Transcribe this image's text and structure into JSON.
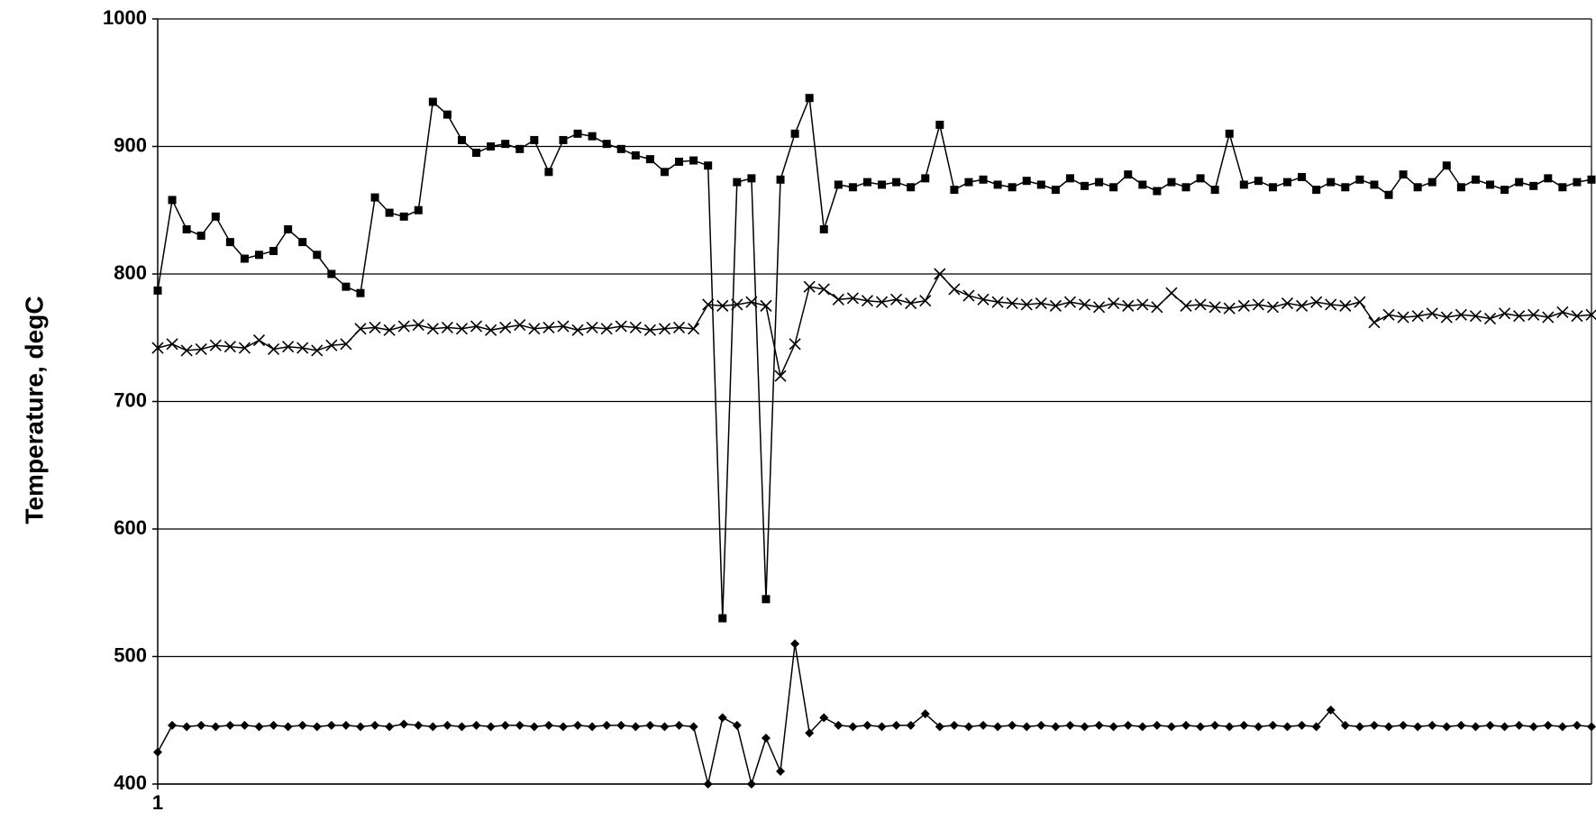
{
  "chart_data": {
    "type": "line",
    "y_label": "Temperature, degC",
    "categories": [
      "1",
      null,
      null,
      null,
      null,
      null,
      null,
      null,
      null,
      null,
      null,
      null,
      null,
      null,
      null,
      null,
      null,
      null,
      null,
      null,
      null,
      null,
      null,
      null,
      null,
      null,
      null,
      null,
      null,
      null,
      null,
      null,
      null,
      null,
      null,
      null,
      null,
      null,
      null,
      null,
      null,
      null,
      null,
      null,
      null,
      null,
      null,
      null,
      null,
      null,
      null,
      null,
      null,
      null,
      null,
      null,
      null,
      null,
      null,
      null,
      null,
      null,
      null,
      null,
      null,
      null,
      null,
      null,
      null,
      null,
      null,
      null,
      null,
      null,
      null,
      null,
      null,
      null,
      null,
      null,
      null,
      null,
      null,
      null,
      null,
      null,
      null,
      null,
      null,
      null,
      null,
      null,
      null,
      null,
      null,
      null,
      null,
      null,
      null,
      null
    ],
    "series": [
      {
        "color": "#000000",
        "marker": "square",
        "values": [
          787,
          858,
          835,
          830,
          845,
          825,
          812,
          815,
          818,
          835,
          825,
          815,
          800,
          790,
          785,
          860,
          848,
          845,
          850,
          935,
          925,
          905,
          895,
          900,
          902,
          898,
          905,
          880,
          905,
          910,
          908,
          902,
          898,
          893,
          890,
          880,
          888,
          889,
          885,
          530,
          872,
          875,
          545,
          874,
          910,
          938,
          835,
          870,
          868,
          872,
          870,
          872,
          868,
          875,
          917,
          866,
          872,
          874,
          870,
          868,
          873,
          870,
          866,
          875,
          869,
          872,
          868,
          878,
          870,
          865,
          872,
          868,
          875,
          866,
          910,
          870,
          873,
          868,
          872,
          876,
          866,
          872,
          868,
          874,
          870,
          862,
          878,
          868,
          872,
          885,
          868,
          874,
          870,
          866,
          872,
          869,
          875,
          868,
          872,
          874
        ]
      },
      {
        "color": "#000000",
        "marker": "x",
        "values": [
          742,
          745,
          740,
          741,
          744,
          743,
          742,
          748,
          741,
          743,
          742,
          740,
          744,
          745,
          757,
          758,
          756,
          759,
          760,
          757,
          758,
          757,
          759,
          756,
          758,
          760,
          757,
          758,
          759,
          756,
          758,
          757,
          759,
          758,
          756,
          757,
          758,
          757,
          776,
          775,
          776,
          778,
          775,
          720,
          745,
          790,
          788,
          780,
          781,
          779,
          778,
          780,
          777,
          779,
          800,
          788,
          783,
          780,
          778,
          777,
          776,
          777,
          775,
          778,
          776,
          774,
          777,
          775,
          776,
          774,
          785,
          775,
          776,
          774,
          773,
          775,
          776,
          774,
          777,
          775,
          778,
          776,
          775,
          778,
          762,
          768,
          766,
          767,
          769,
          766,
          768,
          767,
          765,
          769,
          767,
          768,
          766,
          770,
          767,
          768
        ]
      },
      {
        "color": "#000000",
        "marker": "diamond",
        "values": [
          425,
          446,
          445,
          446,
          445,
          446,
          446,
          445,
          446,
          445,
          446,
          445,
          446,
          446,
          445,
          446,
          445,
          447,
          446,
          445,
          446,
          445,
          446,
          445,
          446,
          446,
          445,
          446,
          445,
          446,
          445,
          446,
          446,
          445,
          446,
          445,
          446,
          445,
          400,
          452,
          446,
          400,
          436,
          410,
          510,
          440,
          452,
          446,
          445,
          446,
          445,
          446,
          446,
          455,
          445,
          446,
          445,
          446,
          445,
          446,
          445,
          446,
          445,
          446,
          445,
          446,
          445,
          446,
          445,
          446,
          445,
          446,
          445,
          446,
          445,
          446,
          445,
          446,
          445,
          446,
          445,
          458,
          446,
          445,
          446,
          445,
          446,
          445,
          446,
          445,
          446,
          445,
          446,
          445,
          446,
          445,
          446,
          445,
          446,
          445
        ]
      }
    ],
    "ylim": [
      400,
      1000
    ],
    "yticks": [
      400,
      500,
      600,
      700,
      800,
      900,
      1000
    ],
    "grid": true
  }
}
